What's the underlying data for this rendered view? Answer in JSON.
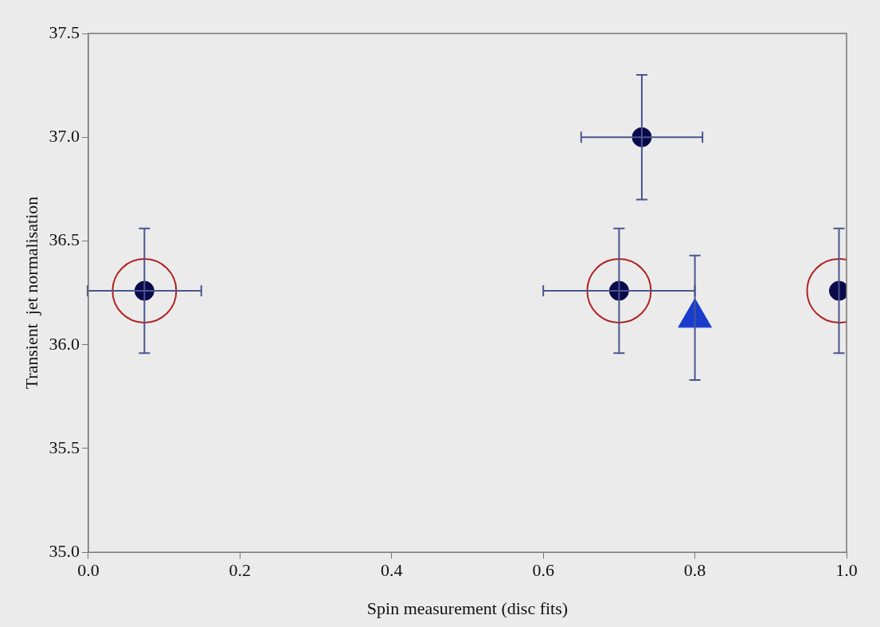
{
  "chart_data": {
    "type": "scatter",
    "xlabel": "Spin measurement (disc fits)",
    "ylabel": "Transient  jet normalisation",
    "xlim": [
      0.0,
      1.0
    ],
    "xticks": [
      {
        "value": 0,
        "label": "0.0"
      },
      0.2,
      0.4,
      0.6,
      0.8,
      {
        "value": 1,
        "label": "1.0"
      }
    ],
    "ylim": [
      35.0,
      37.5
    ],
    "yticks": [
      {
        "value": 35,
        "label": "35.0"
      },
      35.5,
      {
        "value": 36,
        "label": "36.0"
      },
      36.5,
      {
        "value": 37,
        "label": "37.0"
      },
      37.5
    ],
    "grid": false,
    "legend": false,
    "series": [
      {
        "marker": "circle",
        "color": "#b22222",
        "x": [
          0.074,
          0.7,
          0.99
        ],
        "values": [
          36.26,
          36.26,
          36.26
        ]
      },
      {
        "marker": "circle",
        "color": "#0a0a4a",
        "x": [
          0.074,
          0.7,
          0.73,
          0.99
        ],
        "values": [
          36.26,
          36.26,
          37.0,
          36.26
        ],
        "errors": [
          0.3,
          0.3,
          0.3,
          0.3
        ],
        "xerrors": [
          0.075,
          0.1,
          0.08,
          null
        ]
      },
      {
        "marker": "triangle",
        "color": "#1a3ccc",
        "x": [
          0.8
        ],
        "values": [
          36.13
        ],
        "errors": [
          0.3
        ]
      }
    ]
  }
}
